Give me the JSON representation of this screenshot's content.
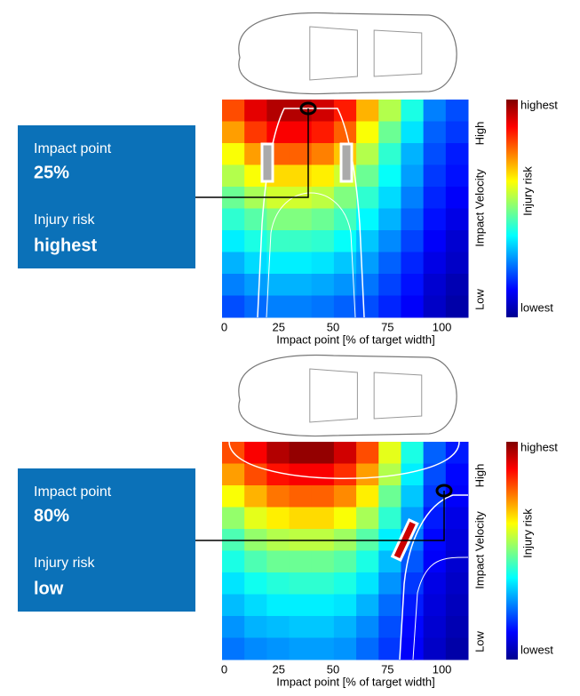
{
  "chart_data": [
    {
      "type": "heatmap",
      "xlabel": "Impact point  [% of target width]",
      "xlim": [
        -1,
        112
      ],
      "xticks": [
        0,
        25,
        50,
        75,
        100
      ],
      "ylabel": "Impact Velocity",
      "y_high": "High",
      "y_low": "Low",
      "colorbar": {
        "label": "Injury risk",
        "high": "highest",
        "low": "lowest"
      },
      "zlim": [
        0,
        100
      ],
      "z": [
        [
          80,
          90,
          95,
          95,
          92,
          85,
          70,
          55,
          40,
          25,
          20
        ],
        [
          72,
          82,
          88,
          88,
          85,
          78,
          62,
          48,
          35,
          22,
          18
        ],
        [
          62,
          72,
          78,
          78,
          75,
          68,
          55,
          42,
          30,
          20,
          15
        ],
        [
          55,
          62,
          66,
          66,
          64,
          58,
          48,
          38,
          28,
          18,
          14
        ],
        [
          48,
          54,
          58,
          58,
          56,
          50,
          42,
          34,
          25,
          16,
          12
        ],
        [
          42,
          46,
          50,
          50,
          48,
          44,
          37,
          30,
          22,
          14,
          10
        ],
        [
          36,
          40,
          43,
          43,
          42,
          38,
          32,
          26,
          19,
          12,
          8
        ],
        [
          30,
          34,
          36,
          36,
          35,
          32,
          28,
          22,
          16,
          10,
          7
        ],
        [
          25,
          28,
          30,
          30,
          29,
          27,
          24,
          19,
          14,
          8,
          5
        ],
        [
          20,
          23,
          25,
          25,
          24,
          22,
          20,
          16,
          12,
          7,
          4
        ]
      ],
      "annotation": {
        "impact_label": "Impact point",
        "impact_value": "25%",
        "risk_label": "Injury risk",
        "risk_value": "highest"
      }
    },
    {
      "type": "heatmap",
      "xlabel": "Impact point  [% of target width]",
      "xlim": [
        -1,
        112
      ],
      "xticks": [
        0,
        25,
        50,
        75,
        100
      ],
      "ylabel": "Impact Velocity",
      "y_high": "High",
      "y_low": "Low",
      "colorbar": {
        "label": "Injury risk",
        "high": "highest",
        "low": "lowest"
      },
      "zlim": [
        0,
        100
      ],
      "z": [
        [
          80,
          88,
          95,
          98,
          98,
          92,
          80,
          60,
          40,
          22,
          15
        ],
        [
          72,
          80,
          86,
          88,
          88,
          83,
          72,
          55,
          36,
          20,
          13
        ],
        [
          62,
          70,
          76,
          78,
          78,
          74,
          64,
          48,
          32,
          18,
          12
        ],
        [
          52,
          60,
          64,
          66,
          66,
          62,
          54,
          42,
          28,
          15,
          10
        ],
        [
          45,
          52,
          55,
          56,
          56,
          53,
          46,
          36,
          24,
          13,
          9
        ],
        [
          40,
          45,
          48,
          48,
          48,
          46,
          40,
          31,
          21,
          12,
          8
        ],
        [
          35,
          39,
          41,
          42,
          42,
          40,
          35,
          27,
          18,
          10,
          7
        ],
        [
          31,
          34,
          36,
          36,
          36,
          35,
          30,
          23,
          15,
          9,
          6
        ],
        [
          27,
          30,
          31,
          32,
          32,
          30,
          26,
          20,
          13,
          8,
          5
        ],
        [
          24,
          26,
          27,
          28,
          28,
          27,
          23,
          18,
          12,
          7,
          4
        ]
      ],
      "annotation": {
        "impact_label": "Impact point",
        "impact_value": "80%",
        "risk_label": "Injury risk",
        "risk_value": "low"
      }
    }
  ]
}
